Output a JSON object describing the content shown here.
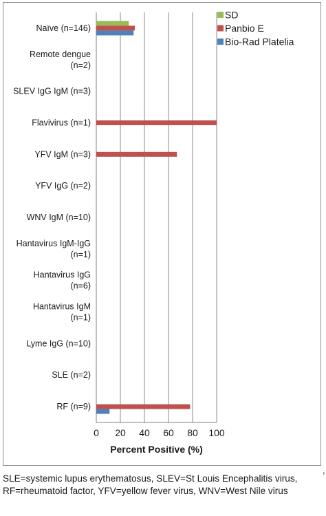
{
  "chart_data": {
    "type": "bar",
    "orientation": "horizontal",
    "categories": [
      [
        "Naïve (n=146)"
      ],
      [
        "Remote dengue",
        "(n=2)"
      ],
      [
        "SLEV IgG IgM (n=3)"
      ],
      [
        "Flavivirus (n=1)"
      ],
      [
        "YFV IgM (n=3)"
      ],
      [
        "YFV IgG (n=2)"
      ],
      [
        "WNV IgM (n=10)"
      ],
      [
        "Hantavirus IgM-IgG",
        "(n=1)"
      ],
      [
        "Hantavirus IgG",
        "(n=6)"
      ],
      [
        "Hantavirus IgM",
        "(n=1)"
      ],
      [
        "Lyme IgG (n=10)"
      ],
      [
        "SLE (n=2)"
      ],
      [
        "RF (n=9)"
      ]
    ],
    "series": [
      {
        "name": "SD",
        "color": "#9bbb59",
        "values": [
          27,
          0,
          0,
          0,
          0,
          0,
          0,
          0,
          0,
          0,
          0,
          0,
          0
        ]
      },
      {
        "name": "Panbio E",
        "color": "#c0504d",
        "values": [
          32,
          0,
          0,
          100,
          67,
          0,
          0,
          0,
          0,
          0,
          0,
          0,
          78
        ]
      },
      {
        "name": "Bio-Rad Platelia",
        "color": "#4f81bd",
        "values": [
          31,
          0,
          0,
          0,
          0,
          0,
          0,
          0,
          0,
          0,
          0,
          0,
          11
        ]
      }
    ],
    "xlabel": "Percent Positive (%)",
    "xlim": [
      0,
      100
    ],
    "xticks": [
      0,
      20,
      40,
      60,
      80,
      100
    ],
    "grid": true,
    "legend": "top-right"
  },
  "trailing_mark": ",",
  "footnote": "SLE=systemic lupus erythematosus, SLEV=St Louis Encephalitis virus, RF=rheumatoid factor, YFV=yellow fever virus, WNV=West Nile virus"
}
